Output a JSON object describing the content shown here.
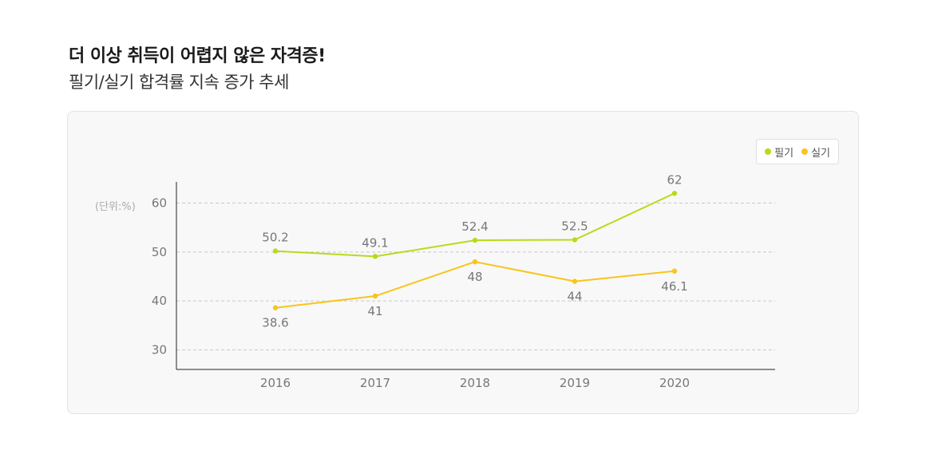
{
  "header": {
    "title": "더 이상 취득이 어렵지 않은 자격증!",
    "subtitle": "필기/실기 합격률 지속 증가 추세"
  },
  "chart_data": {
    "type": "line",
    "x": [
      "2016",
      "2017",
      "2018",
      "2019",
      "2020"
    ],
    "series": [
      {
        "name": "필기",
        "values": [
          50.2,
          49.1,
          52.4,
          52.5,
          62
        ],
        "value_labels": [
          "50.2",
          "49.1",
          "52.4",
          "52.5",
          "62"
        ],
        "color": "#b5dc1a",
        "label_position": "above"
      },
      {
        "name": "실기",
        "values": [
          38.6,
          41,
          48,
          44,
          46.1
        ],
        "value_labels": [
          "38.6",
          "41",
          "48",
          "44",
          "46.1"
        ],
        "color": "#f7c51c",
        "label_position": "below"
      }
    ],
    "y_ticks": [
      30,
      40,
      50,
      60
    ],
    "y_tick_labels": [
      "30",
      "40",
      "50",
      "60"
    ],
    "unit_label": "(단위:%)",
    "ylim": [
      26,
      64
    ],
    "grid": true,
    "legend": "top-right"
  },
  "colors": {
    "axis": "#222222",
    "grid": "#c8c8c8",
    "tick_text": "#777777",
    "value_text": "#777777"
  }
}
